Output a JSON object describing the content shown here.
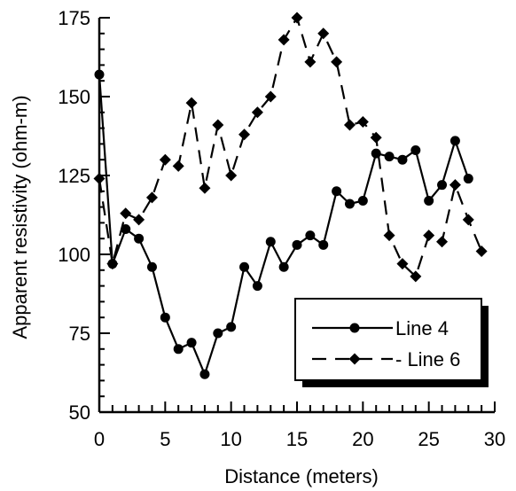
{
  "chart_data": {
    "type": "line",
    "title": "",
    "xlabel": "Distance (meters)",
    "ylabel": "Apparent resistivity (ohm-m)",
    "xlim": [
      0,
      30
    ],
    "ylim": [
      50,
      175
    ],
    "x_major_ticks": [
      0,
      5,
      10,
      15,
      20,
      25,
      30
    ],
    "x_tick_labels": [
      "0",
      "5",
      "10",
      "15",
      "20",
      "25",
      "30"
    ],
    "y_major_ticks": [
      50,
      75,
      100,
      125,
      150,
      175
    ],
    "y_tick_labels": [
      "50",
      "75",
      "100",
      "125",
      "150",
      "175"
    ],
    "grid": false,
    "legend_position": "bottom-right",
    "series": [
      {
        "name": "Line 4",
        "line_style": "solid",
        "marker": "circle",
        "x": [
          0,
          1,
          2,
          3,
          4,
          5,
          6,
          7,
          8,
          9,
          10,
          11,
          12,
          13,
          14,
          15,
          16,
          17,
          18,
          19,
          20,
          21,
          22,
          23,
          24,
          25,
          26,
          27,
          28
        ],
        "values": [
          157,
          97,
          108,
          105,
          96,
          80,
          70,
          72,
          62,
          75,
          77,
          96,
          90,
          104,
          96,
          103,
          106,
          103,
          120,
          116,
          117,
          132,
          131,
          130,
          133,
          117,
          122,
          136,
          124
        ]
      },
      {
        "name": "Line 6",
        "line_style": "dashed",
        "marker": "diamond",
        "x": [
          0,
          1,
          2,
          3,
          4,
          5,
          6,
          7,
          8,
          9,
          10,
          11,
          12,
          13,
          14,
          15,
          16,
          17,
          18,
          19,
          20,
          21,
          22,
          23,
          24,
          25,
          26,
          27,
          28,
          29
        ],
        "values": [
          124,
          97,
          113,
          111,
          118,
          130,
          128,
          148,
          121,
          141,
          125,
          138,
          145,
          150,
          168,
          175,
          161,
          170,
          161,
          141,
          142,
          137,
          106,
          97,
          93,
          106,
          104,
          122,
          111,
          101
        ]
      }
    ],
    "legend": [
      "Line 4",
      "- Line 6"
    ]
  }
}
